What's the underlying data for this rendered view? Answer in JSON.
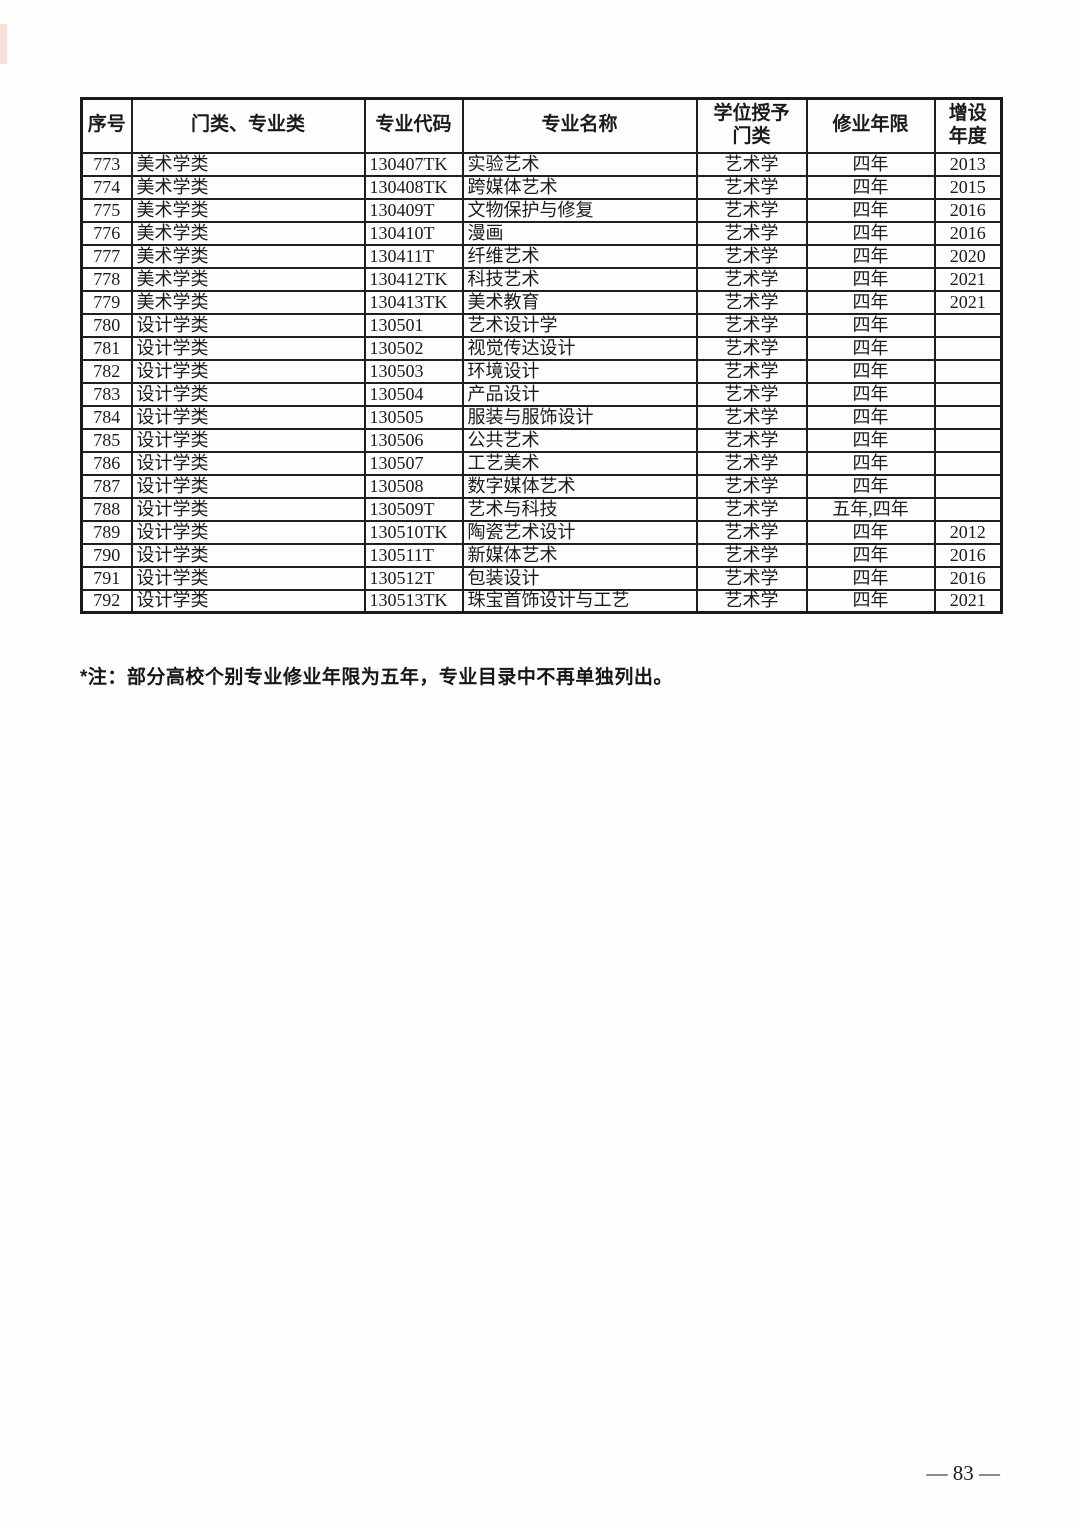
{
  "page": {
    "footnote": "*注：部分高校个别专业修业年限为五年，专业目录中不再单独列出。",
    "page_number": "— 83 —"
  },
  "table": {
    "columns": [
      {
        "key": "index",
        "label": "序号"
      },
      {
        "key": "category",
        "label": "门类、专业类"
      },
      {
        "key": "code",
        "label": "专业代码"
      },
      {
        "key": "name",
        "label": "专业名称"
      },
      {
        "key": "degree",
        "label": "学位授予\n门类"
      },
      {
        "key": "duration",
        "label": "修业年限"
      },
      {
        "key": "year",
        "label": "增设\n年度"
      }
    ],
    "rows": [
      [
        "773",
        "美术学类",
        "130407TK",
        "实验艺术",
        "艺术学",
        "四年",
        "2013"
      ],
      [
        "774",
        "美术学类",
        "130408TK",
        "跨媒体艺术",
        "艺术学",
        "四年",
        "2015"
      ],
      [
        "775",
        "美术学类",
        "130409T",
        "文物保护与修复",
        "艺术学",
        "四年",
        "2016"
      ],
      [
        "776",
        "美术学类",
        "130410T",
        "漫画",
        "艺术学",
        "四年",
        "2016"
      ],
      [
        "777",
        "美术学类",
        "130411T",
        "纤维艺术",
        "艺术学",
        "四年",
        "2020"
      ],
      [
        "778",
        "美术学类",
        "130412TK",
        "科技艺术",
        "艺术学",
        "四年",
        "2021"
      ],
      [
        "779",
        "美术学类",
        "130413TK",
        "美术教育",
        "艺术学",
        "四年",
        "2021"
      ],
      [
        "780",
        "设计学类",
        "130501",
        "艺术设计学",
        "艺术学",
        "四年",
        ""
      ],
      [
        "781",
        "设计学类",
        "130502",
        "视觉传达设计",
        "艺术学",
        "四年",
        ""
      ],
      [
        "782",
        "设计学类",
        "130503",
        "环境设计",
        "艺术学",
        "四年",
        ""
      ],
      [
        "783",
        "设计学类",
        "130504",
        "产品设计",
        "艺术学",
        "四年",
        ""
      ],
      [
        "784",
        "设计学类",
        "130505",
        "服装与服饰设计",
        "艺术学",
        "四年",
        ""
      ],
      [
        "785",
        "设计学类",
        "130506",
        "公共艺术",
        "艺术学",
        "四年",
        ""
      ],
      [
        "786",
        "设计学类",
        "130507",
        "工艺美术",
        "艺术学",
        "四年",
        ""
      ],
      [
        "787",
        "设计学类",
        "130508",
        "数字媒体艺术",
        "艺术学",
        "四年",
        ""
      ],
      [
        "788",
        "设计学类",
        "130509T",
        "艺术与科技",
        "艺术学",
        "五年,四年",
        ""
      ],
      [
        "789",
        "设计学类",
        "130510TK",
        "陶瓷艺术设计",
        "艺术学",
        "四年",
        "2012"
      ],
      [
        "790",
        "设计学类",
        "130511T",
        "新媒体艺术",
        "艺术学",
        "四年",
        "2016"
      ],
      [
        "791",
        "设计学类",
        "130512T",
        "包装设计",
        "艺术学",
        "四年",
        "2016"
      ],
      [
        "792",
        "设计学类",
        "130513TK",
        "珠宝首饰设计与工艺",
        "艺术学",
        "四年",
        "2021"
      ]
    ]
  }
}
